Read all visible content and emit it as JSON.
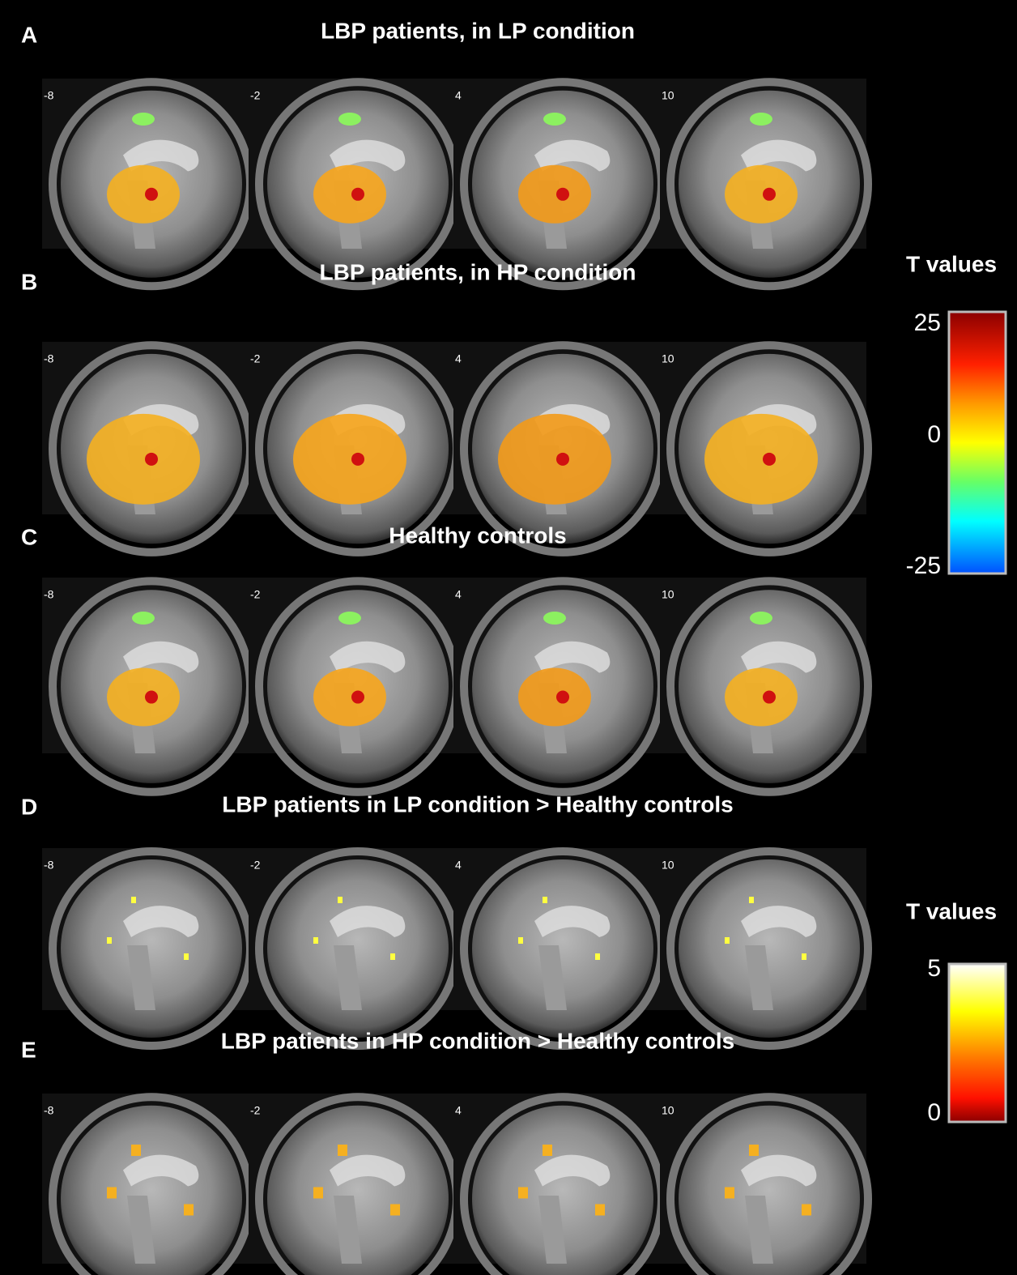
{
  "panels": [
    {
      "letter": "A",
      "title": "LBP patients, in LP condition",
      "slices": [
        "-8",
        "-2",
        "4",
        "10"
      ]
    },
    {
      "letter": "B",
      "title": "LBP patients, in HP condition",
      "slices": [
        "-8",
        "-2",
        "4",
        "10"
      ]
    },
    {
      "letter": "C",
      "title": "Healthy controls",
      "slices": [
        "-8",
        "-2",
        "4",
        "10"
      ]
    },
    {
      "letter": "D",
      "title": "LBP patients in LP condition > Healthy controls",
      "slices": [
        "-8",
        "-2",
        "4",
        "10"
      ]
    },
    {
      "letter": "E",
      "title": "LBP patients in HP condition > Healthy controls",
      "slices": [
        "-8",
        "-2",
        "4",
        "10"
      ]
    }
  ],
  "colorbars": [
    {
      "title": "T values",
      "ticks": [
        "25",
        "0",
        "-25"
      ]
    },
    {
      "title": "T values",
      "ticks": [
        "5",
        "0"
      ]
    }
  ]
}
